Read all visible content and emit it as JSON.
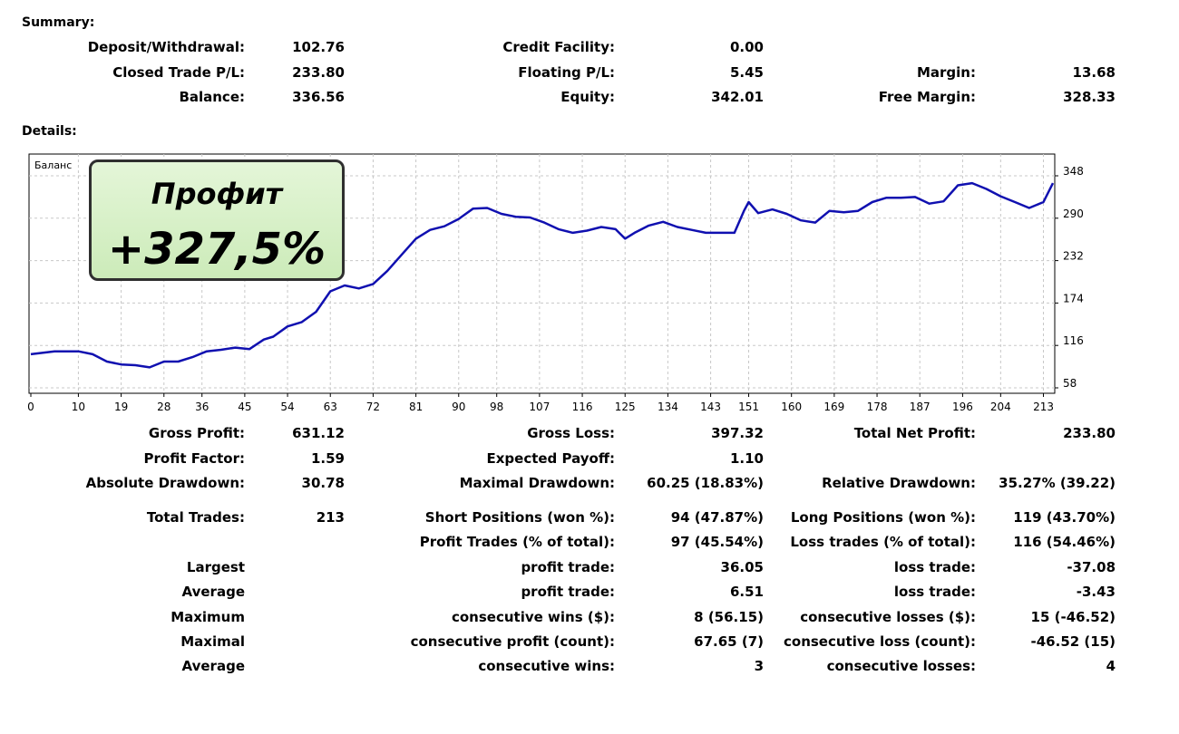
{
  "summary": {
    "title": "Summary:",
    "rows": [
      {
        "l1": "Deposit/Withdrawal:",
        "v1": "102.76",
        "l2": "Credit Facility:",
        "v2": "0.00",
        "l3": "",
        "v3": ""
      },
      {
        "l1": "Closed Trade P/L:",
        "v1": "233.80",
        "l2": "Floating P/L:",
        "v2": "5.45",
        "l3": "Margin:",
        "v3": "13.68"
      },
      {
        "l1": "Balance:",
        "v1": "336.56",
        "l2": "Equity:",
        "v2": "342.01",
        "l3": "Free Margin:",
        "v3": "328.33"
      }
    ]
  },
  "details": {
    "title": "Details:"
  },
  "badge": {
    "title": "Профит",
    "value": "+327,5%"
  },
  "chart_data": {
    "type": "line",
    "title": "Баланс",
    "x_ticks": [
      "0",
      "10",
      "19",
      "28",
      "36",
      "45",
      "54",
      "63",
      "72",
      "81",
      "90",
      "98",
      "107",
      "116",
      "125",
      "134",
      "143",
      "151",
      "160",
      "169",
      "178",
      "187",
      "196",
      "204",
      "213"
    ],
    "y_ticks": [
      "348",
      "290",
      "232",
      "174",
      "116",
      "58"
    ],
    "ylim": [
      58,
      348
    ],
    "grid": true,
    "series": [
      {
        "color": "#1010b0",
        "x": [
          0,
          5,
          10,
          13,
          16,
          19,
          22,
          25,
          28,
          31,
          34,
          37,
          40,
          43,
          46,
          49,
          51,
          54,
          57,
          60,
          63,
          66,
          69,
          72,
          75,
          78,
          81,
          84,
          87,
          90,
          93,
          96,
          99,
          102,
          105,
          108,
          111,
          114,
          117,
          120,
          123,
          125,
          127,
          130,
          133,
          136,
          139,
          142,
          145,
          148,
          150,
          151,
          153,
          156,
          159,
          162,
          165,
          168,
          171,
          174,
          177,
          180,
          183,
          186,
          189,
          192,
          195,
          198,
          201,
          204,
          207,
          210,
          213,
          215
        ],
        "y": [
          104,
          108,
          108,
          104,
          94,
          90,
          89,
          86,
          94,
          94,
          100,
          108,
          110,
          113,
          111,
          124,
          128,
          142,
          148,
          162,
          190,
          198,
          194,
          200,
          218,
          240,
          262,
          274,
          279,
          289,
          303,
          304,
          296,
          292,
          291,
          284,
          275,
          270,
          273,
          278,
          275,
          262,
          270,
          280,
          285,
          278,
          274,
          270,
          270,
          270,
          300,
          312,
          297,
          302,
          296,
          287,
          284,
          300,
          298,
          300,
          312,
          318,
          318,
          319,
          310,
          313,
          335,
          338,
          330,
          320,
          312,
          304,
          312,
          338
        ]
      }
    ]
  },
  "stats": {
    "block1": [
      {
        "l1": "Gross Profit:",
        "v1": "631.12",
        "l2": "Gross Loss:",
        "v2": "397.32",
        "l3": "Total Net Profit:",
        "v3": "233.80"
      },
      {
        "l1": "Profit Factor:",
        "v1": "1.59",
        "l2": "Expected Payoff:",
        "v2": "1.10",
        "l3": "",
        "v3": ""
      },
      {
        "l1": "Absolute Drawdown:",
        "v1": "30.78",
        "l2": "Maximal Drawdown:",
        "v2": "60.25 (18.83%)",
        "l3": "Relative Drawdown:",
        "v3": "35.27% (39.22)"
      }
    ],
    "block2": [
      {
        "l1": "Total Trades:",
        "v1": "213",
        "l2": "Short Positions (won %):",
        "v2": "94 (47.87%)",
        "l3": "Long Positions (won %):",
        "v3": "119 (43.70%)"
      },
      {
        "l1": "",
        "v1": "",
        "l2": "Profit Trades (% of total):",
        "v2": "97 (45.54%)",
        "l3": "Loss trades (% of total):",
        "v3": "116 (54.46%)"
      },
      {
        "l1": "Largest",
        "v1": "",
        "l2": "profit trade:",
        "v2": "36.05",
        "l3": "loss trade:",
        "v3": "-37.08"
      },
      {
        "l1": "Average",
        "v1": "",
        "l2": "profit trade:",
        "v2": "6.51",
        "l3": "loss trade:",
        "v3": "-3.43"
      },
      {
        "l1": "Maximum",
        "v1": "",
        "l2": "consecutive wins ($):",
        "v2": "8 (56.15)",
        "l3": "consecutive losses ($):",
        "v3": "15 (-46.52)"
      },
      {
        "l1": "Maximal",
        "v1": "",
        "l2": "consecutive profit (count):",
        "v2": "67.65 (7)",
        "l3": "consecutive loss (count):",
        "v3": "-46.52 (15)"
      },
      {
        "l1": "Average",
        "v1": "",
        "l2": "consecutive wins:",
        "v2": "3",
        "l3": "consecutive losses:",
        "v3": "4"
      }
    ]
  }
}
